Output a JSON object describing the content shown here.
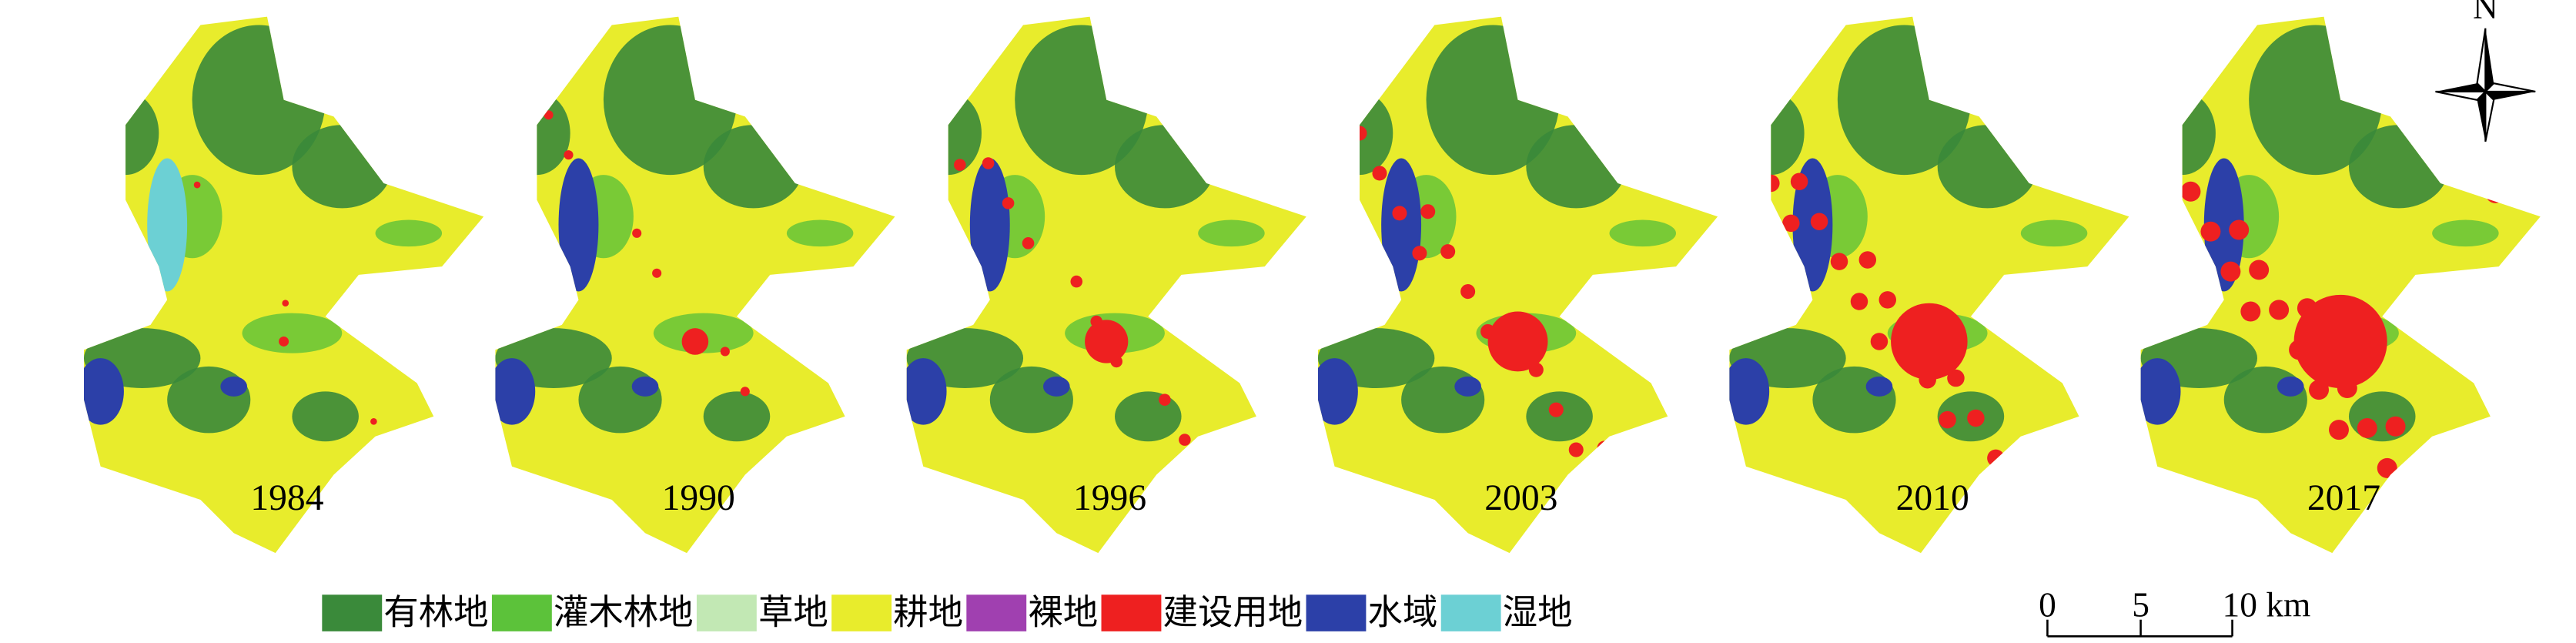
{
  "maps": [
    {
      "year": "1984"
    },
    {
      "year": "1990"
    },
    {
      "year": "1996"
    },
    {
      "year": "2003"
    },
    {
      "year": "2010"
    },
    {
      "year": "2017"
    }
  ],
  "legend": [
    {
      "label": "有林地",
      "color": "#3a8a3a"
    },
    {
      "label": "灌木林地",
      "color": "#5cc23a"
    },
    {
      "label": "草地",
      "color": "#c2e8b4"
    },
    {
      "label": "耕地",
      "color": "#e8ec2c"
    },
    {
      "label": "裸地",
      "color": "#a040b0"
    },
    {
      "label": "建设用地",
      "color": "#ee2020"
    },
    {
      "label": "水域",
      "color": "#2c40a8"
    },
    {
      "label": "湿地",
      "color": "#6cd0d4"
    }
  ],
  "scale_bar": {
    "labels": [
      "0",
      "5",
      "10 km"
    ]
  },
  "north": "N"
}
